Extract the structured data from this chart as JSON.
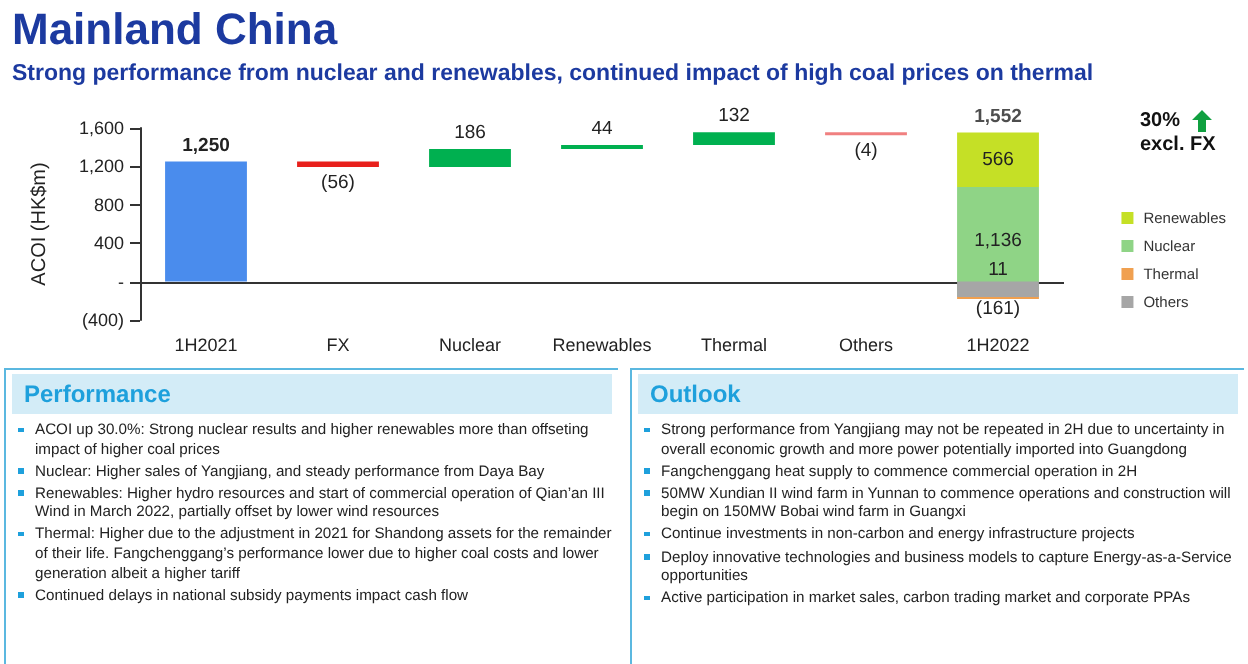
{
  "chart_data": {
    "type": "bar",
    "title": "Mainland China",
    "subtitle": "Strong performance from nuclear and renewables, continued impact of high coal prices on thermal",
    "ylabel": "ACOI (HK$m)",
    "categories": [
      "1H2021",
      "FX",
      "Nuclear",
      "Renewables",
      "Thermal",
      "Others",
      "1H2022"
    ],
    "ylim": [
      -400,
      1600
    ],
    "yticks": [
      {
        "value": -400,
        "label": "(400)"
      },
      {
        "value": 0,
        "label": "-"
      },
      {
        "value": 400,
        "label": "400"
      },
      {
        "value": 800,
        "label": "800"
      },
      {
        "value": 1200,
        "label": "1,200"
      },
      {
        "value": 1600,
        "label": "1,600"
      }
    ],
    "grid": false,
    "ref_lines": [
      {
        "axis": "y",
        "value": 0,
        "color": "#333333"
      }
    ],
    "legend": "right",
    "series": [
      {
        "values": [
          1250,
          -56,
          186,
          44,
          132,
          -4,
          null
        ],
        "base": [
          0,
          1250,
          1194,
          1380,
          1424,
          1556,
          null
        ],
        "colors": [
          "#4a8ced",
          "#e8201c",
          "#00b050",
          "#00b050",
          "#00b050",
          "#f08080",
          null
        ],
        "value_labels": [
          "1,250",
          "(56)",
          "186",
          "44",
          "132",
          "(4)",
          null
        ]
      },
      {
        "name": "Renewables",
        "color": "#c5e026",
        "values": [
          null,
          null,
          null,
          null,
          null,
          null,
          566
        ],
        "base": [
          null,
          null,
          null,
          null,
          null,
          null,
          986
        ],
        "value_labels": [
          null,
          null,
          null,
          null,
          null,
          null,
          "566"
        ]
      },
      {
        "name": "Nuclear",
        "color": "#8fd486",
        "values": [
          null,
          null,
          null,
          null,
          null,
          null,
          1136
        ],
        "base": [
          null,
          null,
          null,
          null,
          null,
          null,
          -150
        ],
        "value_labels": [
          null,
          null,
          null,
          null,
          null,
          null,
          "1,136"
        ]
      },
      {
        "name": "Thermal",
        "color": "#f0a050",
        "values": [
          null,
          null,
          null,
          null,
          null,
          null,
          11
        ],
        "base": [
          null,
          null,
          null,
          null,
          null,
          null,
          -161
        ],
        "value_labels": [
          null,
          null,
          null,
          null,
          null,
          null,
          "11"
        ]
      },
      {
        "name": "Others",
        "color": "#a6a6a6",
        "values": [
          null,
          null,
          null,
          null,
          null,
          null,
          -161
        ],
        "base": [
          null,
          null,
          null,
          null,
          null,
          null,
          0
        ],
        "value_labels": [
          null,
          null,
          null,
          null,
          null,
          null,
          "(161)"
        ]
      }
    ],
    "totals": [
      null,
      null,
      null,
      null,
      null,
      null,
      "1,552"
    ],
    "annotations": [
      "30% excl. FX",
      "Performance",
      "ACOI up 30.0%: Strong nuclear results and higher renewables more than offseting impact of higher coal prices",
      "Nuclear: Higher sales of Yangjiang, and steady performance from Daya Bay",
      "Renewables: Higher hydro resources and start of commercial operation of Qian’an III Wind in March 2022, partially offset by lower wind resources",
      "Thermal: Higher due to the adjustment in 2021 for Shandong assets for the remainder of their life. Fangchenggang’s performance lower due to higher coal costs and lower generation albeit a higher tariff",
      "Continued delays in national subsidy payments impact cash flow",
      "Outlook",
      "Strong performance from Yangjiang may not be repeated in 2H due to uncertainty in overall economic growth and more power potentially imported into Guangdong",
      "Fangchenggang heat supply to commence commercial operation in 2H",
      "50MW Xundian II wind farm in Yunnan to commence operations and construction will begin on 150MW Bobai wind farm in Guangxi",
      "Continue investments in non-carbon and energy infrastructure projects",
      "Deploy innovative technologies and business models to capture Energy-as-a-Service opportunities",
      "Active participation in market sales, carbon trading market and corporate PPAs"
    ]
  }
}
